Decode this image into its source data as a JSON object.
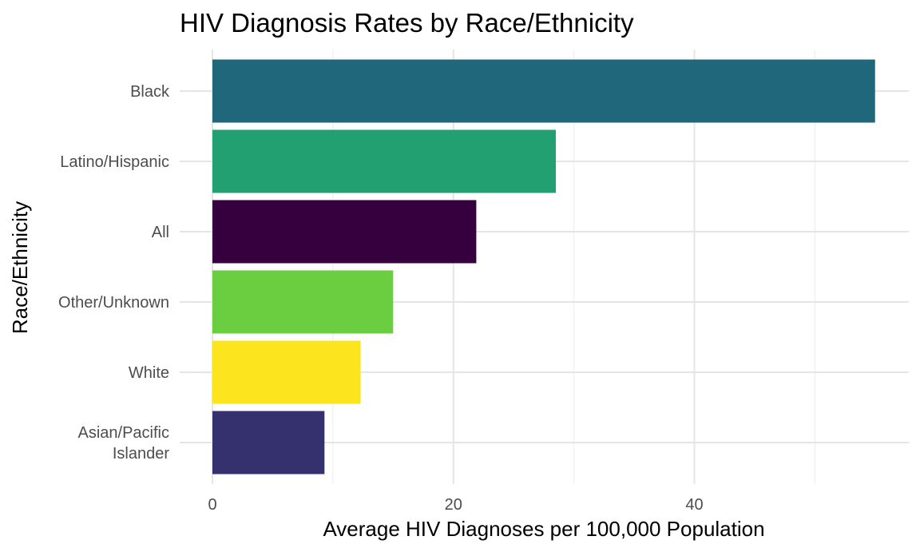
{
  "chart_data": {
    "type": "bar",
    "orientation": "horizontal",
    "title": "HIV Diagnosis Rates by Race/Ethnicity",
    "xlabel": "Average HIV Diagnoses per 100,000 Population",
    "ylabel": "Race/Ethnicity",
    "categories": [
      [
        "Black"
      ],
      [
        "Latino/Hispanic"
      ],
      [
        "All"
      ],
      [
        "Other/Unknown"
      ],
      [
        "White"
      ],
      [
        "Asian/Pacific",
        "Islander"
      ]
    ],
    "values": [
      55.0,
      28.5,
      21.9,
      15.0,
      12.3,
      9.3
    ],
    "colors": [
      "#21677C",
      "#22A072",
      "#36003F",
      "#6BCD40",
      "#FCE51E",
      "#35306E"
    ],
    "xlim": [
      0,
      57.8
    ],
    "xticks": [
      0,
      20,
      40
    ],
    "xtick_labels": [
      "0",
      "20",
      "40"
    ],
    "grid": true,
    "legend": "none"
  }
}
